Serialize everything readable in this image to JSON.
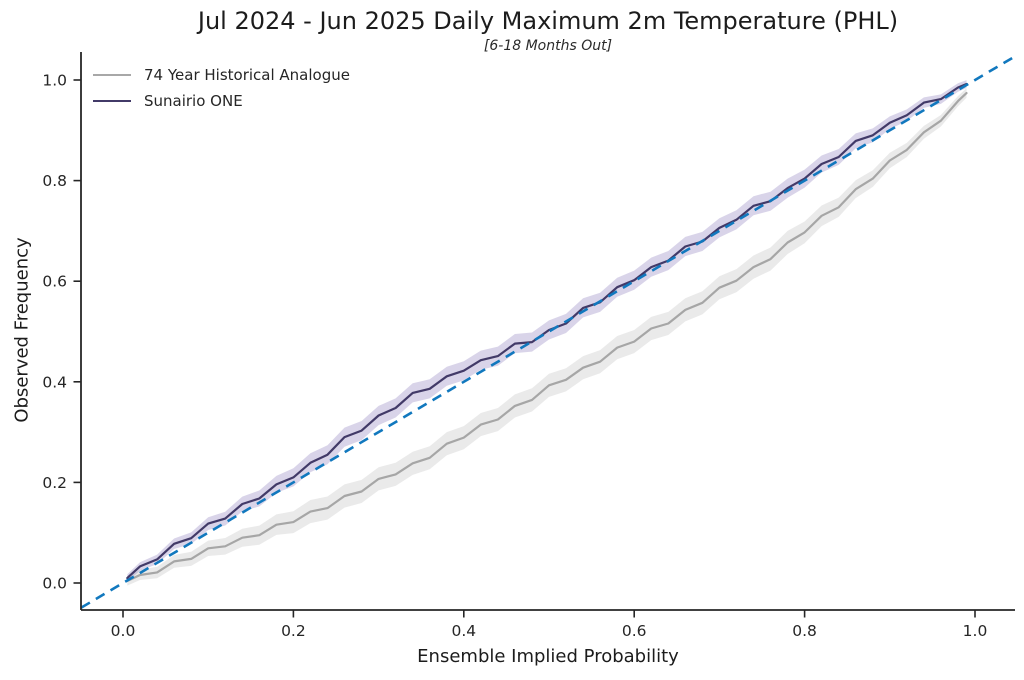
{
  "figure": {
    "title": "Jul 2024 - Jun 2025 Daily Maximum 2m Temperature (PHL)",
    "subtitle": "[6-18 Months Out]",
    "xlabel": "Ensemble Implied Probability",
    "ylabel": "Observed Frequency"
  },
  "legend": {
    "position": "upper left",
    "items": [
      {
        "label": "74 Year Historical Analogue",
        "color": "#a8a8a8"
      },
      {
        "label": "Sunairio ONE",
        "color": "#423a68"
      }
    ]
  },
  "chart_data": {
    "type": "line",
    "title": "Jul 2024 - Jun 2025 Daily Maximum 2m Temperature (PHL)",
    "subtitle": "[6-18 Months Out]",
    "xlabel": "Ensemble Implied Probability",
    "ylabel": "Observed Frequency",
    "xlim": [
      -0.05,
      1.05
    ],
    "ylim": [
      -0.05,
      1.05
    ],
    "grid": false,
    "x_ticks": [
      "0.0",
      "0.2",
      "0.4",
      "0.6",
      "0.8",
      "1.0"
    ],
    "y_ticks": [
      "0.0",
      "0.2",
      "0.4",
      "0.6",
      "0.8",
      "1.0"
    ],
    "reference_line": {
      "name": "perfect-calibration-diagonal",
      "from": [
        0,
        0
      ],
      "to": [
        1,
        1
      ],
      "style": "dashed",
      "color": "#1178be"
    },
    "series": [
      {
        "name": "74 Year Historical Analogue",
        "color": "#a6a6a6",
        "band_color": "#a0a0a0",
        "band_alpha": 0.22,
        "band_halfwidth": 0.023,
        "x": [
          0.005,
          0.02,
          0.04,
          0.06,
          0.08,
          0.1,
          0.12,
          0.14,
          0.16,
          0.18,
          0.2,
          0.22,
          0.24,
          0.26,
          0.28,
          0.3,
          0.32,
          0.34,
          0.36,
          0.38,
          0.4,
          0.42,
          0.44,
          0.46,
          0.48,
          0.5,
          0.52,
          0.54,
          0.56,
          0.58,
          0.6,
          0.62,
          0.64,
          0.66,
          0.68,
          0.7,
          0.72,
          0.74,
          0.76,
          0.78,
          0.8,
          0.82,
          0.84,
          0.86,
          0.88,
          0.9,
          0.92,
          0.94,
          0.96,
          0.98,
          0.99
        ],
        "y": [
          0.004,
          0.016,
          0.021,
          0.043,
          0.048,
          0.069,
          0.073,
          0.09,
          0.095,
          0.116,
          0.121,
          0.142,
          0.149,
          0.173,
          0.182,
          0.207,
          0.216,
          0.238,
          0.249,
          0.277,
          0.289,
          0.315,
          0.325,
          0.352,
          0.364,
          0.393,
          0.404,
          0.428,
          0.44,
          0.468,
          0.48,
          0.506,
          0.516,
          0.543,
          0.557,
          0.587,
          0.601,
          0.628,
          0.644,
          0.677,
          0.697,
          0.73,
          0.747,
          0.783,
          0.804,
          0.84,
          0.861,
          0.896,
          0.919,
          0.958,
          0.974
        ]
      },
      {
        "name": "Sunairio ONE",
        "color": "#423a68",
        "band_color": "#7864af",
        "band_alpha": 0.28,
        "band_halfwidth": 0.019,
        "x": [
          0.005,
          0.02,
          0.04,
          0.06,
          0.08,
          0.1,
          0.12,
          0.14,
          0.16,
          0.18,
          0.2,
          0.22,
          0.24,
          0.26,
          0.28,
          0.3,
          0.32,
          0.34,
          0.36,
          0.38,
          0.4,
          0.42,
          0.44,
          0.46,
          0.48,
          0.5,
          0.52,
          0.54,
          0.56,
          0.58,
          0.6,
          0.62,
          0.64,
          0.66,
          0.68,
          0.7,
          0.72,
          0.74,
          0.76,
          0.78,
          0.8,
          0.82,
          0.84,
          0.86,
          0.88,
          0.9,
          0.92,
          0.94,
          0.96,
          0.98,
          0.99
        ],
        "y": [
          0.01,
          0.033,
          0.047,
          0.078,
          0.089,
          0.118,
          0.128,
          0.157,
          0.168,
          0.196,
          0.21,
          0.239,
          0.255,
          0.29,
          0.303,
          0.333,
          0.348,
          0.378,
          0.386,
          0.411,
          0.422,
          0.443,
          0.451,
          0.476,
          0.479,
          0.503,
          0.516,
          0.547,
          0.558,
          0.588,
          0.602,
          0.628,
          0.641,
          0.669,
          0.679,
          0.706,
          0.722,
          0.75,
          0.759,
          0.785,
          0.804,
          0.833,
          0.847,
          0.879,
          0.89,
          0.915,
          0.93,
          0.955,
          0.962,
          0.985,
          0.992
        ]
      }
    ],
    "axis_color": "#262626",
    "tick_label_color": "#262626"
  }
}
